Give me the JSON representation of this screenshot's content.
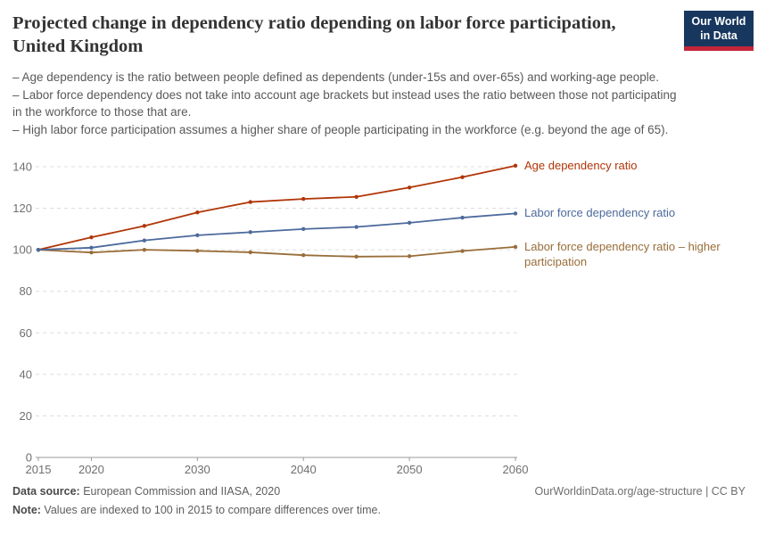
{
  "header": {
    "title": "Projected change in dependency ratio depending on labor force participation, United Kingdom",
    "logo": {
      "line1": "Our World",
      "line2": "in Data",
      "bg_color": "#18375f",
      "accent_color": "#c32639"
    }
  },
  "subtitle": "– Age dependency is the ratio between people defined as dependents (under-15s and over-65s) and working-age people.\n– Labor force dependency does not take into account age brackets but instead uses the ratio between those not participating in the workforce to those that are.\n– High labor force participation assumes a higher share of people participating in the workforce (e.g. beyond the age of 65).",
  "chart_data": {
    "type": "line",
    "title": "Projected change in dependency ratio depending on labor force participation, United Kingdom",
    "xlabel": "",
    "ylabel": "",
    "x": [
      2015,
      2020,
      2025,
      2030,
      2035,
      2040,
      2045,
      2050,
      2055,
      2060
    ],
    "series": [
      {
        "name": "Age dependency ratio",
        "color": "#b13507",
        "values": [
          100,
          106,
          111.5,
          118,
          123,
          124.5,
          125.5,
          130,
          135,
          140.5
        ]
      },
      {
        "name": "Labor force dependency ratio",
        "color": "#4c6a9c",
        "values": [
          100,
          101,
          104.5,
          107,
          108.5,
          110,
          111,
          113,
          115.5,
          117.5
        ]
      },
      {
        "name": "Labor force dependency ratio – higher participation",
        "color": "#996d39",
        "values": [
          100,
          98.7,
          100,
          99.5,
          98.8,
          97.4,
          96.7,
          96.9,
          99.4,
          101.4
        ]
      }
    ],
    "ylim": [
      0,
      147
    ],
    "yticks": [
      0,
      20,
      40,
      60,
      80,
      100,
      120,
      140
    ],
    "xticks": [
      2015,
      2020,
      2030,
      2040,
      2050,
      2060
    ],
    "grid": "horizontal dashed",
    "legend_position": "right of line ends",
    "note": "Values are indexed to 100 in 2015"
  },
  "footer": {
    "source_label": "Data source:",
    "source_text": " European Commission and IIASA, 2020",
    "note_label": "Note:",
    "note_text": " Values are indexed to 100 in 2015 to compare differences over time.",
    "link": "OurWorldinData.org/age-structure | CC BY"
  }
}
